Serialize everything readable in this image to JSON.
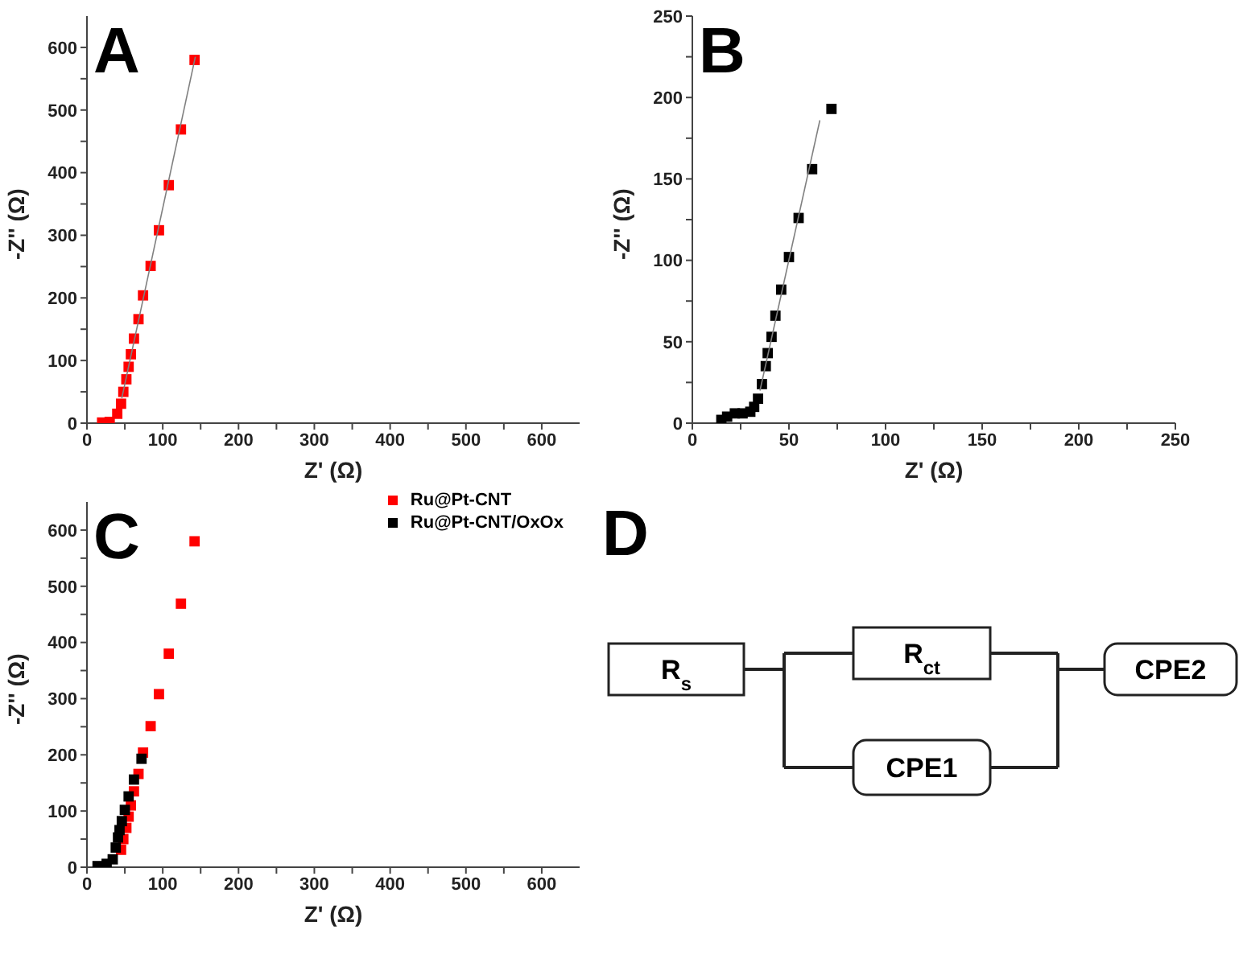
{
  "chart_data": [
    {
      "type": "scatter",
      "title": "A",
      "xlabel": "Z' (Ω)",
      "ylabel": "-Z'' (Ω)",
      "marker": "square",
      "xlim": [
        0,
        650
      ],
      "ylim": [
        0,
        650
      ],
      "xticks": [
        0,
        {
          "value": 50,
          "label": null
        },
        100,
        {
          "value": 150,
          "label": null
        },
        200,
        {
          "value": 250,
          "label": null
        },
        300,
        {
          "value": 350,
          "label": null
        },
        400,
        {
          "value": 450,
          "label": null
        },
        500,
        {
          "value": 550,
          "label": null
        },
        600
      ],
      "yticks": [
        0,
        {
          "value": 50,
          "label": null
        },
        100,
        {
          "value": 150,
          "label": null
        },
        200,
        {
          "value": 250,
          "label": null
        },
        300,
        {
          "value": 350,
          "label": null
        },
        400,
        {
          "value": 450,
          "label": null
        },
        500,
        {
          "value": 550,
          "label": null
        },
        600
      ],
      "series": [
        {
          "color": "#ff0000",
          "x": [
            20,
            30,
            40,
            45,
            48,
            52,
            55,
            58,
            62,
            68,
            74,
            84,
            95,
            108,
            124,
            142
          ],
          "values": [
            1,
            2,
            15,
            31,
            50,
            70,
            90,
            110,
            135,
            166,
            204,
            251,
            308,
            380,
            469,
            580
          ]
        },
        {
          "type": "line",
          "marker": "none",
          "line_style": "solid",
          "color": "#808080",
          "x": [
            46,
            143
          ],
          "values": [
            40,
            585
          ]
        }
      ]
    },
    {
      "type": "scatter",
      "title": "B",
      "xlabel": "Z' (Ω)",
      "ylabel": "-Z'' (Ω)",
      "marker": "square",
      "xlim": [
        0,
        250
      ],
      "ylim": [
        0,
        250
      ],
      "xticks": [
        0,
        {
          "value": 25,
          "label": null
        },
        50,
        {
          "value": 75,
          "label": null
        },
        100,
        {
          "value": 125,
          "label": null
        },
        150,
        {
          "value": 175,
          "label": null
        },
        200,
        {
          "value": 225,
          "label": null
        },
        250
      ],
      "yticks": [
        0,
        {
          "value": 25,
          "label": null
        },
        50,
        {
          "value": 75,
          "label": null
        },
        100,
        {
          "value": 125,
          "label": null
        },
        150,
        {
          "value": 175,
          "label": null
        },
        200,
        {
          "value": 225,
          "label": null
        },
        250
      ],
      "series": [
        {
          "color": "#000000",
          "x": [
            15,
            18,
            22,
            26,
            30,
            32,
            34,
            36,
            38,
            39,
            41,
            43,
            46,
            50,
            55,
            62,
            72
          ],
          "values": [
            2,
            4,
            6,
            6,
            7,
            10,
            15,
            24,
            35,
            43,
            53,
            66,
            82,
            102,
            126,
            156,
            193
          ]
        },
        {
          "type": "line",
          "marker": "none",
          "line_style": "solid",
          "color": "#808080",
          "x": [
            35,
            66
          ],
          "values": [
            20,
            186
          ]
        }
      ]
    },
    {
      "type": "scatter",
      "title": "C",
      "xlabel": "Z' (Ω)",
      "ylabel": "-Z'' (Ω)",
      "marker": "square",
      "legend": "top right",
      "xlim": [
        0,
        650
      ],
      "ylim": [
        0,
        650
      ],
      "xticks": [
        0,
        {
          "value": 50,
          "label": null
        },
        100,
        {
          "value": 150,
          "label": null
        },
        200,
        {
          "value": 250,
          "label": null
        },
        300,
        {
          "value": 350,
          "label": null
        },
        400,
        {
          "value": 450,
          "label": null
        },
        500,
        {
          "value": 550,
          "label": null
        },
        600
      ],
      "yticks": [
        0,
        {
          "value": 50,
          "label": null
        },
        100,
        {
          "value": 150,
          "label": null
        },
        200,
        {
          "value": 250,
          "label": null
        },
        300,
        {
          "value": 350,
          "label": null
        },
        400,
        {
          "value": 450,
          "label": null
        },
        500,
        {
          "value": 550,
          "label": null
        },
        600
      ],
      "series": [
        {
          "name": "Ru@Pt-CNT",
          "color": "#ff0000",
          "x": [
            45,
            48,
            52,
            55,
            58,
            62,
            68,
            74,
            84,
            95,
            108,
            124,
            142
          ],
          "values": [
            31,
            50,
            70,
            90,
            110,
            135,
            166,
            204,
            251,
            308,
            380,
            469,
            580
          ]
        },
        {
          "name": "Ru@Pt-CNT/OxOx",
          "color": "#000000",
          "x": [
            14,
            26,
            34,
            38,
            41,
            43,
            46,
            50,
            55,
            62,
            72
          ],
          "values": [
            2,
            6,
            14,
            35,
            53,
            66,
            82,
            102,
            126,
            156,
            193
          ]
        }
      ]
    },
    {
      "type": "other",
      "title": "D",
      "annotations": [
        "R$_{s}$",
        "R$_{ct}$",
        "CPE1",
        "CPE2"
      ]
    }
  ]
}
